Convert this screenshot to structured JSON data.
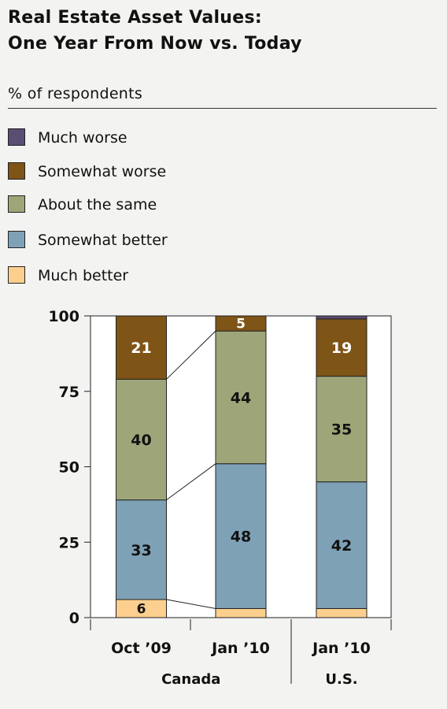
{
  "title_line1": "Real Estate Asset Values:",
  "title_line2": "One Year From Now vs. Today",
  "unit_label": "% of respondents",
  "colors": {
    "much_worse": "#5a4e73",
    "somewhat_worse": "#7f5417",
    "about_same": "#9ea679",
    "somewhat_better": "#7fa1b6",
    "much_better": "#fccf8e"
  },
  "legend": [
    {
      "label": "Much worse",
      "color": "#5a4e73"
    },
    {
      "label": "Somewhat worse",
      "color": "#7f5417"
    },
    {
      "label": "About the same",
      "color": "#9ea679"
    },
    {
      "label": "Somewhat better",
      "color": "#7fa1b6"
    },
    {
      "label": "Much better",
      "color": "#fccf8e"
    }
  ],
  "chart_data": {
    "type": "bar",
    "stacked": true,
    "categories": [
      "Oct ’09",
      "Jan ’10",
      "Jan ’10"
    ],
    "groups": [
      "Canada",
      "U.S."
    ],
    "category_groups": [
      "Canada",
      "Canada",
      "U.S."
    ],
    "yticks": [
      "0",
      "25",
      "50",
      "75",
      "100"
    ],
    "ylim": [
      0,
      100
    ],
    "series": [
      {
        "name": "Much better",
        "values": [
          6,
          3,
          3
        ],
        "labels": [
          "6",
          "",
          ""
        ]
      },
      {
        "name": "Somewhat better",
        "values": [
          33,
          48,
          42
        ],
        "labels": [
          "33",
          "48",
          "42"
        ]
      },
      {
        "name": "About the same",
        "values": [
          40,
          44,
          35
        ],
        "labels": [
          "40",
          "44",
          "35"
        ]
      },
      {
        "name": "Somewhat worse",
        "values": [
          21,
          5,
          19
        ],
        "labels": [
          "21",
          "5",
          "19"
        ]
      },
      {
        "name": "Much worse",
        "values": [
          0,
          0,
          1
        ],
        "labels": [
          "",
          "",
          ""
        ]
      }
    ],
    "label_colors": [
      "#111111",
      "#111111",
      "#111111",
      "#ffffff",
      "#ffffff"
    ],
    "connector_lines": true
  }
}
